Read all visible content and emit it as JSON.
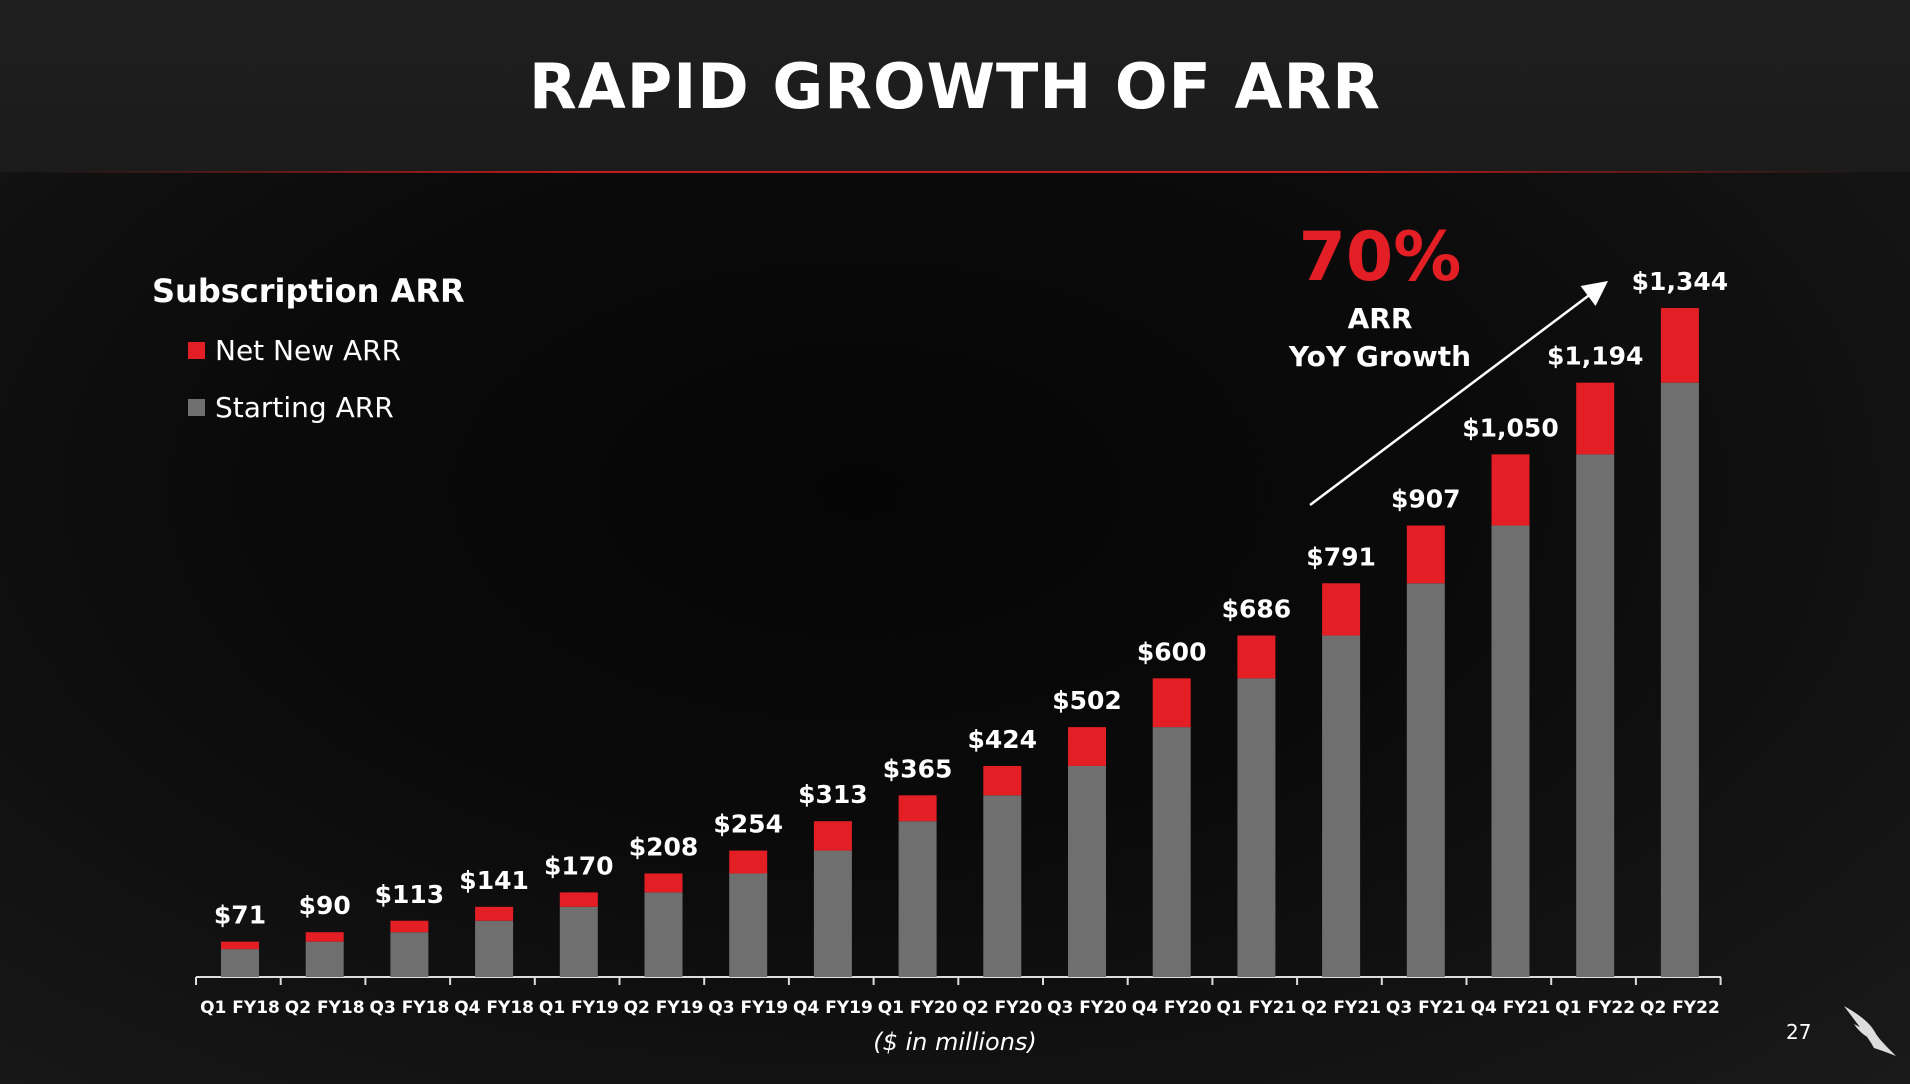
{
  "header": {
    "title": "RAPID GROWTH OF ARR"
  },
  "page_number": "27",
  "callout": {
    "value": "70%",
    "line1": "ARR",
    "line2": "YoY Growth"
  },
  "colors": {
    "net_new": "#e31e24",
    "starting": "#6f6f6f",
    "accent": "#e31e24"
  },
  "chart_data": {
    "type": "bar",
    "stacked": true,
    "title": "Subscription ARR",
    "xlabel": "($ in millions)",
    "categories": [
      "Q1 FY18",
      "Q2 FY18",
      "Q3 FY18",
      "Q4 FY18",
      "Q1 FY19",
      "Q2 FY19",
      "Q3 FY19",
      "Q4 FY19",
      "Q1 FY20",
      "Q2 FY20",
      "Q3 FY20",
      "Q4 FY20",
      "Q1 FY21",
      "Q2 FY21",
      "Q3 FY21",
      "Q4 FY21",
      "Q1 FY22",
      "Q2 FY22"
    ],
    "series": [
      {
        "name": "Starting ARR",
        "values": [
          56,
          71,
          90,
          113,
          141,
          170,
          208,
          254,
          313,
          365,
          424,
          502,
          600,
          686,
          791,
          907,
          1050,
          1194
        ]
      },
      {
        "name": "Net New ARR",
        "values": [
          15,
          19,
          23,
          28,
          29,
          38,
          46,
          59,
          52,
          59,
          78,
          98,
          86,
          105,
          116,
          143,
          144,
          150
        ]
      }
    ],
    "totals": [
      71,
      90,
      113,
      141,
      170,
      208,
      254,
      313,
      365,
      424,
      502,
      600,
      686,
      791,
      907,
      1050,
      1194,
      1344
    ],
    "total_labels": [
      "$71",
      "$90",
      "$113",
      "$141",
      "$170",
      "$208",
      "$254",
      "$313",
      "$365",
      "$424",
      "$502",
      "$600",
      "$686",
      "$791",
      "$907",
      "$1,050",
      "$1,194",
      "$1,344"
    ],
    "ylim": [
      0,
      1344
    ],
    "grid": false,
    "legend_position": "top-left"
  }
}
